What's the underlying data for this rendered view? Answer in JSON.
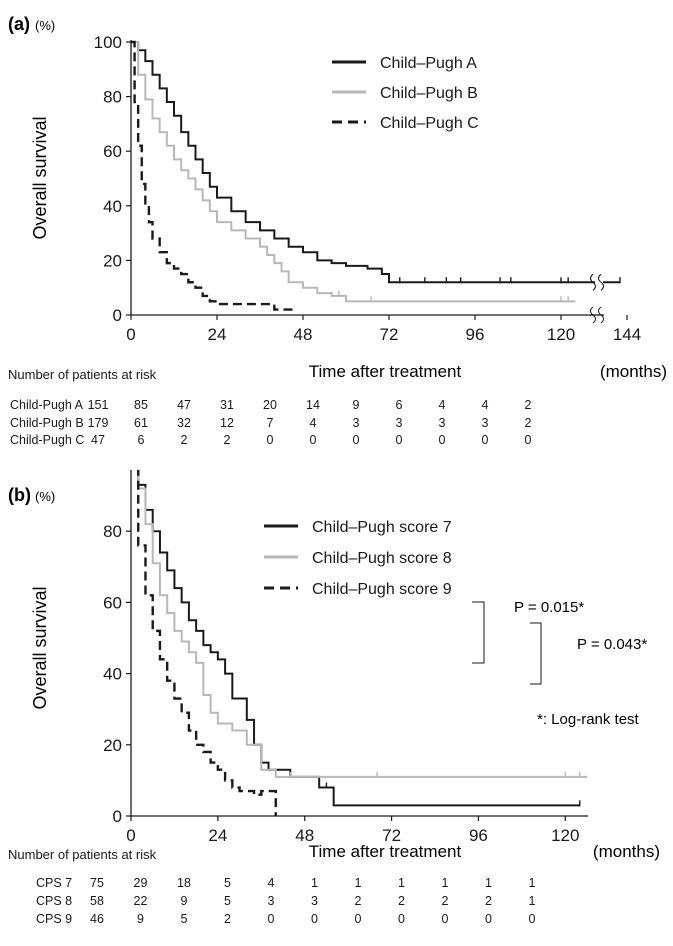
{
  "colors": {
    "black": "#1a1a1a",
    "gray": "#b8b8b8"
  },
  "chart_data": [
    {
      "type": "line",
      "panel_label": "(a)",
      "y_unit": "(%)",
      "ylabel": "Overall survival",
      "xlabel": "Time after treatment",
      "x_unit": "(months)",
      "xlim": [
        0,
        144
      ],
      "ylim": [
        0,
        100
      ],
      "xticks": [
        0,
        24,
        48,
        72,
        96,
        120,
        144
      ],
      "yticks": [
        0,
        20,
        40,
        60,
        80,
        100
      ],
      "axis_break": true,
      "legend_position": "top-right",
      "series": [
        {
          "name": "Child–Pugh A",
          "color": "#1a1a1a",
          "style": "solid",
          "points": [
            [
              0,
              100
            ],
            [
              2,
              97
            ],
            [
              4,
              93
            ],
            [
              6,
              88
            ],
            [
              8,
              83
            ],
            [
              10,
              78
            ],
            [
              12,
              73
            ],
            [
              14,
              67
            ],
            [
              16,
              62
            ],
            [
              18,
              57
            ],
            [
              20,
              52
            ],
            [
              22,
              47
            ],
            [
              24,
              43
            ],
            [
              28,
              38
            ],
            [
              32,
              34
            ],
            [
              36,
              31
            ],
            [
              40,
              28
            ],
            [
              44,
              25
            ],
            [
              48,
              23
            ],
            [
              52,
              20
            ],
            [
              56,
              19
            ],
            [
              60,
              18
            ],
            [
              66,
              17
            ],
            [
              70,
              15
            ],
            [
              72,
              12
            ],
            [
              141,
              12
            ]
          ],
          "censor_x": [
            75,
            82,
            88,
            92,
            103,
            106,
            120,
            122,
            141
          ]
        },
        {
          "name": "Child–Pugh B",
          "color": "#b8b8b8",
          "style": "solid",
          "points": [
            [
              0,
              100
            ],
            [
              2,
              88
            ],
            [
              4,
              79
            ],
            [
              6,
              72
            ],
            [
              8,
              67
            ],
            [
              10,
              62
            ],
            [
              12,
              57
            ],
            [
              14,
              53
            ],
            [
              16,
              50
            ],
            [
              18,
              46
            ],
            [
              20,
              42
            ],
            [
              22,
              38
            ],
            [
              24,
              34
            ],
            [
              28,
              31
            ],
            [
              32,
              28
            ],
            [
              36,
              25
            ],
            [
              38,
              22
            ],
            [
              40,
              19
            ],
            [
              42,
              16
            ],
            [
              44,
              12
            ],
            [
              48,
              10
            ],
            [
              52,
              8
            ],
            [
              56,
              7
            ],
            [
              60,
              5
            ],
            [
              124,
              5
            ]
          ],
          "censor_x": [
            58,
            67,
            120,
            122
          ]
        },
        {
          "name": "Child–Pugh C",
          "color": "#1a1a1a",
          "style": "dashed",
          "points": [
            [
              0,
              100
            ],
            [
              1,
              78
            ],
            [
              2,
              62
            ],
            [
              3,
              48
            ],
            [
              4,
              40
            ],
            [
              5,
              34
            ],
            [
              6,
              28
            ],
            [
              8,
              23
            ],
            [
              10,
              19
            ],
            [
              12,
              17
            ],
            [
              14,
              15
            ],
            [
              16,
              12
            ],
            [
              18,
              10
            ],
            [
              20,
              7
            ],
            [
              22,
              5
            ],
            [
              24,
              4
            ],
            [
              28,
              4
            ],
            [
              36,
              4
            ],
            [
              40,
              2
            ],
            [
              46,
              2
            ]
          ],
          "censor_x": []
        }
      ],
      "risk_table": {
        "title": "Number of patients at risk",
        "rows": [
          {
            "label": "Child-Pugh A",
            "counts": [
              151,
              85,
              47,
              31,
              20,
              14,
              9,
              6,
              4,
              4,
              2
            ]
          },
          {
            "label": "Child-Pugh B",
            "counts": [
              179,
              61,
              32,
              12,
              7,
              4,
              3,
              3,
              3,
              3,
              2
            ]
          },
          {
            "label": "Child-Pugh C",
            "counts": [
              47,
              6,
              2,
              2,
              0,
              0,
              0,
              0,
              0,
              0,
              0
            ]
          }
        ]
      }
    },
    {
      "type": "line",
      "panel_label": "(b)",
      "y_unit": "(%)",
      "ylabel": "Overall survival",
      "xlabel": "Time after treatment",
      "x_unit": "(months)",
      "xlim": [
        0,
        126
      ],
      "ylim": [
        0,
        100
      ],
      "xticks": [
        0,
        24,
        48,
        72,
        96,
        120
      ],
      "yticks": [
        0,
        20,
        40,
        60,
        80,
        100
      ],
      "legend_position": "top-right",
      "series": [
        {
          "name": "Child–Pugh score 7",
          "color": "#1a1a1a",
          "style": "solid",
          "points": [
            [
              0,
              100
            ],
            [
              2,
              93
            ],
            [
              4,
              86
            ],
            [
              6,
              80
            ],
            [
              8,
              74
            ],
            [
              10,
              69
            ],
            [
              12,
              64
            ],
            [
              14,
              60
            ],
            [
              16,
              55
            ],
            [
              18,
              52
            ],
            [
              20,
              48
            ],
            [
              22,
              46
            ],
            [
              24,
              44
            ],
            [
              26,
              40
            ],
            [
              28,
              33
            ],
            [
              32,
              27
            ],
            [
              34,
              20
            ],
            [
              36,
              15
            ],
            [
              38,
              13
            ],
            [
              44,
              11
            ],
            [
              52,
              8
            ],
            [
              56,
              3
            ],
            [
              124,
              3
            ]
          ],
          "censor_x": [
            54,
            124
          ]
        },
        {
          "name": "Child–Pugh score 8",
          "color": "#b8b8b8",
          "style": "solid",
          "points": [
            [
              0,
              100
            ],
            [
              2,
              92
            ],
            [
              4,
              82
            ],
            [
              6,
              71
            ],
            [
              8,
              62
            ],
            [
              10,
              57
            ],
            [
              12,
              52
            ],
            [
              14,
              49
            ],
            [
              16,
              46
            ],
            [
              18,
              43
            ],
            [
              20,
              34
            ],
            [
              22,
              29
            ],
            [
              24,
              26
            ],
            [
              28,
              24
            ],
            [
              32,
              20
            ],
            [
              36,
              13
            ],
            [
              40,
              11
            ],
            [
              126,
              11
            ]
          ],
          "censor_x": [
            44,
            68,
            120,
            124
          ]
        },
        {
          "name": "Child–Pugh score 9",
          "color": "#1a1a1a",
          "style": "dashed",
          "points": [
            [
              0,
              100
            ],
            [
              2,
              76
            ],
            [
              4,
              62
            ],
            [
              6,
              52
            ],
            [
              8,
              44
            ],
            [
              10,
              38
            ],
            [
              12,
              33
            ],
            [
              14,
              29
            ],
            [
              16,
              24
            ],
            [
              18,
              20
            ],
            [
              20,
              18
            ],
            [
              22,
              15
            ],
            [
              24,
              13
            ],
            [
              26,
              10
            ],
            [
              28,
              8
            ],
            [
              30,
              7
            ],
            [
              34,
              6
            ],
            [
              36,
              7
            ],
            [
              40,
              0
            ]
          ],
          "censor_x": []
        }
      ],
      "annotations": {
        "p1": "P = 0.015*",
        "p2": "P = 0.043*",
        "note": "*: Log-rank test"
      },
      "risk_table": {
        "title": "Number of patients at risk",
        "rows": [
          {
            "label": "CPS 7",
            "counts": [
              75,
              29,
              18,
              5,
              4,
              1,
              1,
              1,
              1,
              1,
              1
            ]
          },
          {
            "label": "CPS 8",
            "counts": [
              58,
              22,
              9,
              5,
              3,
              3,
              2,
              2,
              2,
              2,
              1
            ]
          },
          {
            "label": "CPS 9",
            "counts": [
              46,
              9,
              5,
              2,
              0,
              0,
              0,
              0,
              0,
              0,
              0
            ]
          }
        ]
      }
    }
  ]
}
